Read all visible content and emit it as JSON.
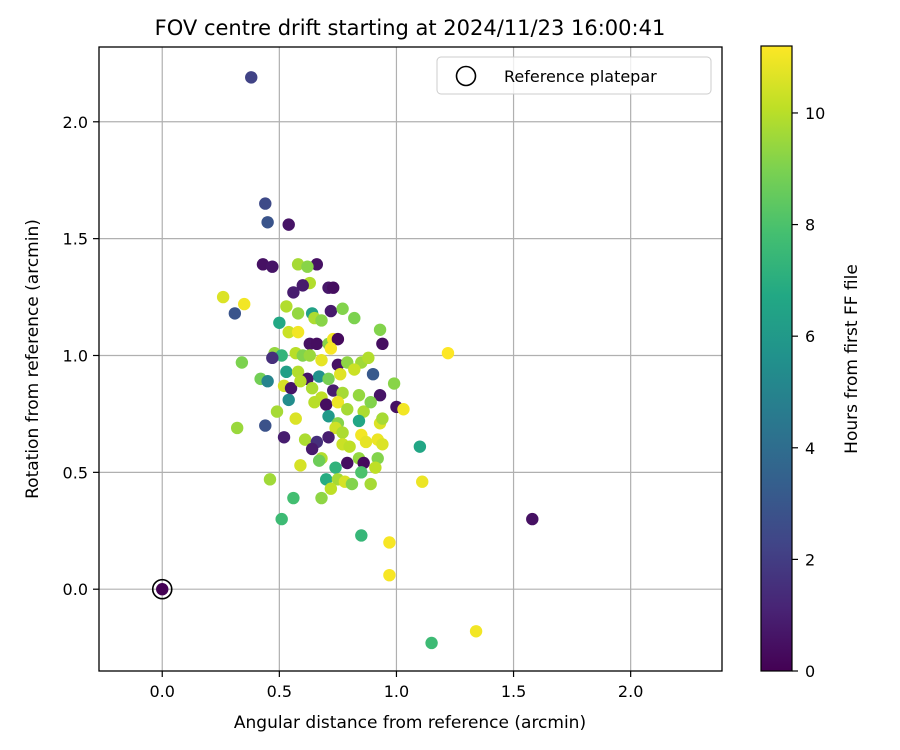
{
  "chart_data": {
    "type": "scatter",
    "title": "FOV centre drift starting at 2024/11/23 16:00:41",
    "xlabel": "Angular distance from reference (arcmin)",
    "ylabel": "Rotation from reference (arcmin)",
    "xlim": [
      -0.27,
      2.39
    ],
    "ylim": [
      -0.35,
      2.32
    ],
    "xticks": [
      0.0,
      0.5,
      1.0,
      1.5,
      2.0
    ],
    "yticks": [
      0.0,
      0.5,
      1.0,
      1.5,
      2.0
    ],
    "xtick_labels": [
      "0.0",
      "0.5",
      "1.0",
      "1.5",
      "2.0"
    ],
    "ytick_labels": [
      "0.0",
      "0.5",
      "1.0",
      "1.5",
      "2.0"
    ],
    "grid": true,
    "legend": {
      "position": "top-right",
      "entries": [
        "Reference platepar"
      ]
    },
    "colorbar": {
      "label": "Hours from first FF file",
      "colormap": "viridis",
      "range": [
        0,
        11.2
      ],
      "ticks": [
        0,
        2,
        4,
        6,
        8,
        10
      ],
      "tick_labels": [
        "0",
        "2",
        "4",
        "6",
        "8",
        "10"
      ]
    },
    "reference_point": {
      "x": 0.0,
      "y": 0.0,
      "hours": 0.0,
      "name": "Reference platepar"
    },
    "points": [
      [
        0.38,
        2.19,
        2.2
      ],
      [
        0.44,
        1.65,
        2.5
      ],
      [
        0.45,
        1.57,
        2.9
      ],
      [
        0.54,
        1.56,
        0.6
      ],
      [
        0.43,
        1.39,
        0.5
      ],
      [
        0.47,
        1.38,
        0.6
      ],
      [
        0.66,
        1.39,
        0.5
      ],
      [
        0.58,
        1.39,
        9.7
      ],
      [
        0.62,
        1.38,
        9.2
      ],
      [
        0.63,
        1.31,
        9.9
      ],
      [
        0.6,
        1.3,
        0.8
      ],
      [
        0.56,
        1.27,
        0.9
      ],
      [
        0.71,
        1.29,
        0.7
      ],
      [
        0.73,
        1.29,
        0.4
      ],
      [
        0.26,
        1.25,
        10.6
      ],
      [
        0.35,
        1.22,
        11.0
      ],
      [
        0.31,
        1.18,
        2.9
      ],
      [
        0.53,
        1.21,
        9.9
      ],
      [
        0.58,
        1.18,
        9.4
      ],
      [
        0.64,
        1.18,
        6.4
      ],
      [
        0.72,
        1.19,
        0.8
      ],
      [
        0.77,
        1.2,
        9.1
      ],
      [
        0.82,
        1.16,
        9.0
      ],
      [
        0.5,
        1.14,
        6.7
      ],
      [
        0.65,
        1.16,
        9.8
      ],
      [
        0.68,
        1.15,
        9.2
      ],
      [
        0.93,
        1.11,
        9.1
      ],
      [
        0.54,
        1.1,
        10.3
      ],
      [
        0.58,
        1.1,
        11.0
      ],
      [
        0.63,
        1.05,
        0.5
      ],
      [
        0.66,
        1.05,
        0.4
      ],
      [
        0.71,
        1.05,
        9.2
      ],
      [
        0.73,
        1.07,
        11.0
      ],
      [
        0.75,
        1.07,
        0.3
      ],
      [
        0.94,
        1.05,
        0.4
      ],
      [
        0.48,
        1.01,
        9.4
      ],
      [
        0.51,
        1.0,
        7.3
      ],
      [
        0.57,
        1.01,
        10.0
      ],
      [
        0.6,
        1.0,
        9.1
      ],
      [
        0.63,
        1.0,
        9.5
      ],
      [
        0.68,
        0.98,
        10.8
      ],
      [
        0.72,
        1.03,
        11.1
      ],
      [
        0.75,
        0.96,
        0.5
      ],
      [
        0.79,
        0.97,
        9.3
      ],
      [
        0.85,
        0.97,
        9.6
      ],
      [
        0.88,
        0.99,
        9.9
      ],
      [
        1.22,
        1.01,
        11.2
      ],
      [
        0.34,
        0.97,
        9.0
      ],
      [
        0.47,
        0.99,
        1.5
      ],
      [
        0.53,
        0.93,
        6.3
      ],
      [
        0.58,
        0.93,
        9.9
      ],
      [
        0.62,
        0.9,
        0.6
      ],
      [
        0.67,
        0.91,
        5.6
      ],
      [
        0.71,
        0.9,
        8.9
      ],
      [
        0.76,
        0.92,
        10.7
      ],
      [
        0.82,
        0.94,
        10.3
      ],
      [
        0.9,
        0.92,
        3.1
      ],
      [
        0.42,
        0.9,
        8.8
      ],
      [
        0.45,
        0.89,
        5.0
      ],
      [
        0.52,
        0.87,
        10.5
      ],
      [
        0.55,
        0.86,
        0.6
      ],
      [
        0.59,
        0.89,
        10.0
      ],
      [
        0.64,
        0.86,
        9.8
      ],
      [
        0.68,
        0.82,
        10.1
      ],
      [
        0.73,
        0.85,
        0.9
      ],
      [
        0.77,
        0.84,
        9.7
      ],
      [
        0.84,
        0.83,
        9.4
      ],
      [
        0.93,
        0.83,
        0.6
      ],
      [
        0.99,
        0.88,
        9.2
      ],
      [
        0.54,
        0.81,
        5.4
      ],
      [
        0.65,
        0.8,
        10.0
      ],
      [
        0.7,
        0.79,
        0.4
      ],
      [
        0.75,
        0.8,
        10.9
      ],
      [
        0.79,
        0.77,
        9.7
      ],
      [
        0.86,
        0.76,
        9.8
      ],
      [
        0.89,
        0.8,
        9.1
      ],
      [
        1.0,
        0.78,
        0.5
      ],
      [
        1.03,
        0.77,
        11.0
      ],
      [
        0.49,
        0.76,
        9.7
      ],
      [
        0.57,
        0.73,
        10.6
      ],
      [
        0.71,
        0.74,
        6.0
      ],
      [
        0.75,
        0.71,
        9.2
      ],
      [
        0.84,
        0.72,
        6.6
      ],
      [
        0.93,
        0.71,
        10.6
      ],
      [
        0.94,
        0.73,
        9.7
      ],
      [
        0.44,
        0.7,
        2.8
      ],
      [
        0.74,
        0.69,
        10.4
      ],
      [
        0.77,
        0.67,
        9.8
      ],
      [
        0.52,
        0.65,
        0.9
      ],
      [
        0.61,
        0.64,
        9.8
      ],
      [
        0.66,
        0.63,
        1.5
      ],
      [
        0.71,
        0.65,
        0.9
      ],
      [
        0.77,
        0.62,
        10.3
      ],
      [
        0.8,
        0.61,
        10.1
      ],
      [
        0.85,
        0.66,
        11.0
      ],
      [
        0.87,
        0.63,
        10.8
      ],
      [
        0.92,
        0.64,
        10.9
      ],
      [
        0.94,
        0.62,
        10.6
      ],
      [
        1.1,
        0.61,
        6.6
      ],
      [
        0.32,
        0.69,
        9.5
      ],
      [
        0.64,
        0.6,
        0.8
      ],
      [
        0.68,
        0.56,
        9.9
      ],
      [
        0.74,
        0.52,
        7.2
      ],
      [
        0.79,
        0.54,
        0.4
      ],
      [
        0.84,
        0.56,
        9.4
      ],
      [
        0.86,
        0.54,
        0.3
      ],
      [
        0.92,
        0.56,
        9.1
      ],
      [
        0.59,
        0.53,
        10.5
      ],
      [
        0.67,
        0.55,
        8.7
      ],
      [
        0.7,
        0.47,
        6.9
      ],
      [
        0.75,
        0.47,
        9.7
      ],
      [
        0.78,
        0.46,
        10.5
      ],
      [
        0.81,
        0.45,
        9.1
      ],
      [
        0.85,
        0.5,
        8.0
      ],
      [
        0.89,
        0.45,
        9.7
      ],
      [
        0.91,
        0.52,
        10.1
      ],
      [
        0.46,
        0.47,
        9.6
      ],
      [
        0.72,
        0.43,
        10.1
      ],
      [
        1.11,
        0.46,
        10.9
      ],
      [
        0.56,
        0.39,
        7.8
      ],
      [
        0.68,
        0.39,
        9.3
      ],
      [
        0.51,
        0.3,
        7.6
      ],
      [
        0.85,
        0.23,
        7.4
      ],
      [
        0.97,
        0.2,
        11.1
      ],
      [
        0.97,
        0.06,
        11.1
      ],
      [
        1.58,
        0.3,
        0.5
      ],
      [
        1.15,
        -0.23,
        7.6
      ],
      [
        1.34,
        -0.18,
        11.0
      ]
    ]
  }
}
